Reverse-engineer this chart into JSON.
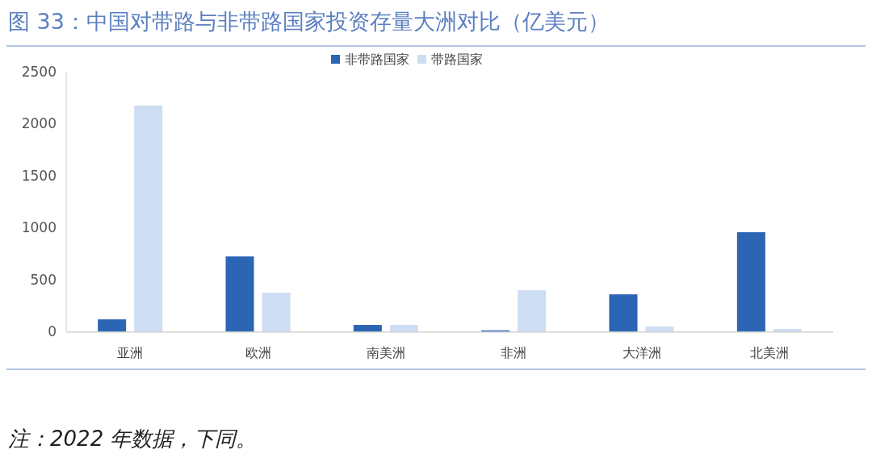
{
  "chart_data": {
    "type": "bar",
    "title": "图 33：中国对带路与非带路国家投资存量大洲对比（亿美元）",
    "categories": [
      "亚洲",
      "欧洲",
      "南美洲",
      "非洲",
      "大洋洲",
      "北美洲"
    ],
    "series": [
      {
        "name": "非带路国家",
        "color": "#2b65b4",
        "values": [
          116,
          722,
          62,
          10,
          357,
          955
        ]
      },
      {
        "name": "带路国家",
        "color": "#cddef2",
        "values": [
          2174,
          373,
          62,
          396,
          47,
          23
        ]
      }
    ],
    "ylim": [
      0,
      2500
    ],
    "yticks": [
      0,
      500,
      1000,
      1500,
      2000,
      2500
    ],
    "grid": false,
    "legend": "top",
    "annotations": [
      "注：2022 年数据，下同。"
    ]
  }
}
